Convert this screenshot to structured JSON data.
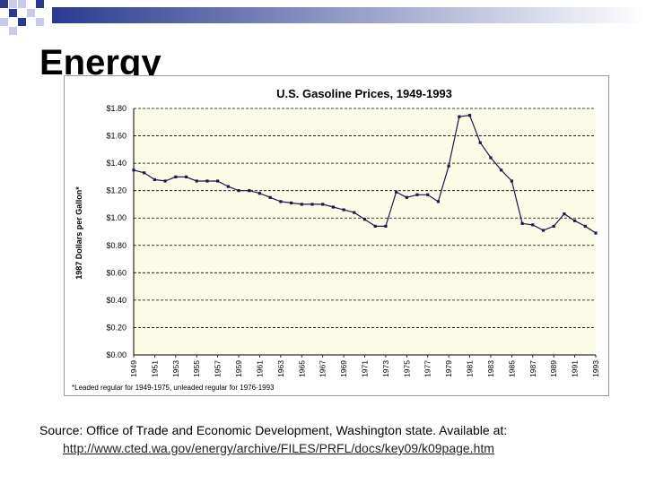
{
  "slide": {
    "title": "Energy",
    "source_text": "Source: Office of Trade and Economic Development, Washington state.  Available at:",
    "source_url": "http://www.cted.wa.gov/energy/archive/FILES/PRFL/docs/key09/k09page.htm"
  },
  "colors": {
    "plot_bg": "#fbfbe8",
    "line": "#1a1a4a",
    "grid": "#000000",
    "accent_blue": "#1a4fa0"
  },
  "chart_data": {
    "type": "line",
    "title": "U.S. Gasoline Prices, 1949-1993",
    "ylabel": "1987 Dollars per Gallon*",
    "xlabel": "",
    "footnote": "*Leaded regular for 1949-1975, unleaded regular for 1976-1993",
    "ylim": [
      0,
      1.8
    ],
    "y_ticks": [
      "$0.00",
      "$0.20",
      "$0.40",
      "$0.60",
      "$0.80",
      "$1.00",
      "$1.20",
      "$1.40",
      "$1.60",
      "$1.80"
    ],
    "x_tick_labels": [
      "1949",
      "1951",
      "1953",
      "1955",
      "1957",
      "1959",
      "1961",
      "1963",
      "1965",
      "1967",
      "1969",
      "1971",
      "1973",
      "1975",
      "1977",
      "1979",
      "1981",
      "1983",
      "1985",
      "1987",
      "1989",
      "1991",
      "1993"
    ],
    "x": [
      1949,
      1950,
      1951,
      1952,
      1953,
      1954,
      1955,
      1956,
      1957,
      1958,
      1959,
      1960,
      1961,
      1962,
      1963,
      1964,
      1965,
      1966,
      1967,
      1968,
      1969,
      1970,
      1971,
      1972,
      1973,
      1974,
      1975,
      1976,
      1977,
      1978,
      1979,
      1980,
      1981,
      1982,
      1983,
      1984,
      1985,
      1986,
      1987,
      1988,
      1989,
      1990,
      1991,
      1992,
      1993
    ],
    "values": [
      1.35,
      1.33,
      1.28,
      1.27,
      1.3,
      1.3,
      1.27,
      1.27,
      1.27,
      1.23,
      1.2,
      1.2,
      1.18,
      1.15,
      1.12,
      1.11,
      1.1,
      1.1,
      1.1,
      1.08,
      1.06,
      1.04,
      0.99,
      0.94,
      0.94,
      1.19,
      1.15,
      1.17,
      1.17,
      1.12,
      1.38,
      1.74,
      1.75,
      1.55,
      1.44,
      1.35,
      1.27,
      0.96,
      0.95,
      0.91,
      0.94,
      1.03,
      0.98,
      0.94,
      0.89
    ]
  }
}
